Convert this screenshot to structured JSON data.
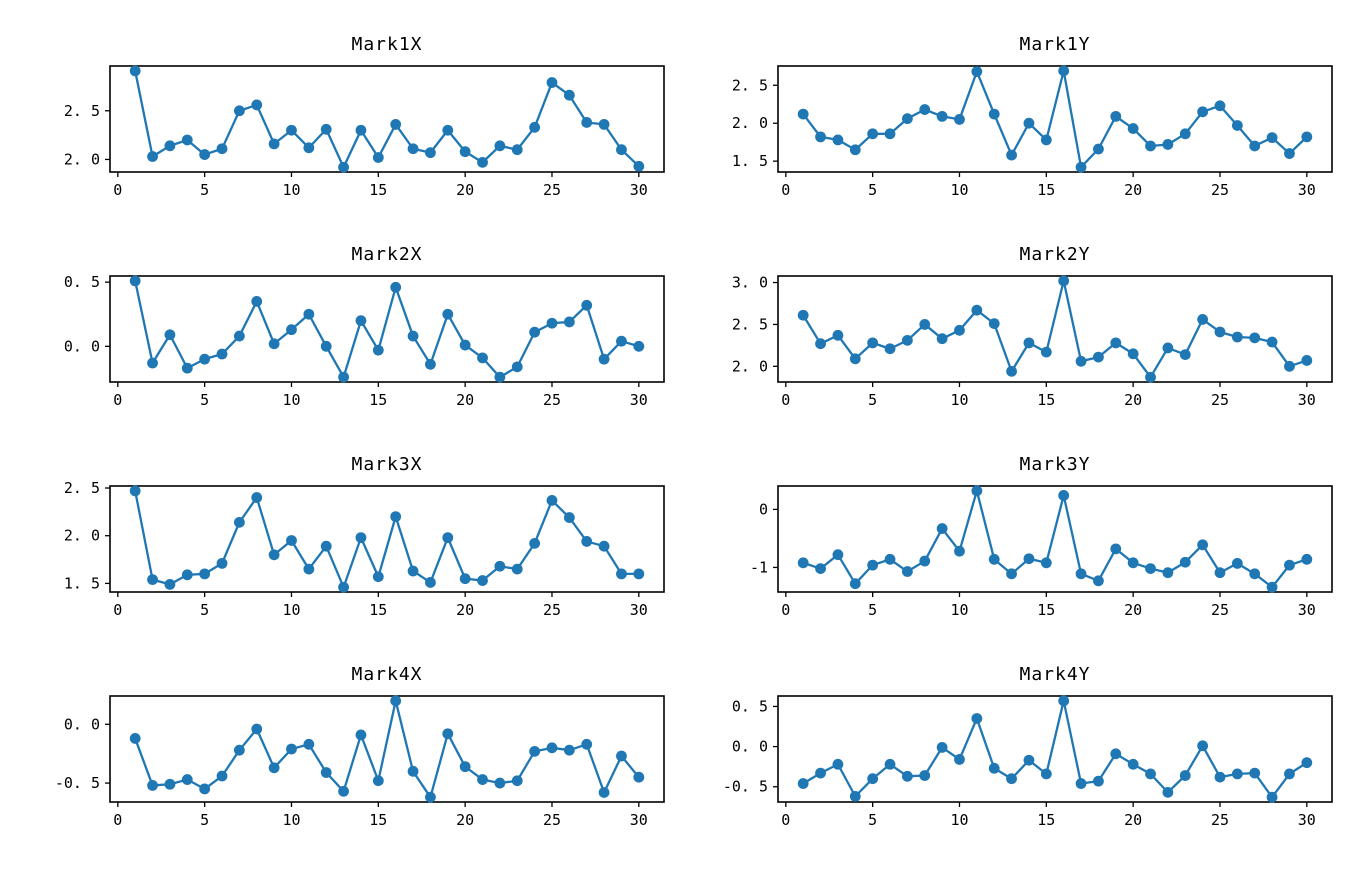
{
  "figure": {
    "background": "#ffffff",
    "accent_color": "#1f77b4",
    "axis_color": "#000000",
    "num_rows": 4,
    "num_cols": 2
  },
  "chart_data": [
    {
      "type": "line",
      "title": "Mark1X",
      "marker": "circle",
      "color": "#1f77b4",
      "grid": false,
      "legend_position": "none",
      "x": [
        1,
        2,
        3,
        4,
        5,
        6,
        7,
        8,
        9,
        10,
        11,
        12,
        13,
        14,
        15,
        16,
        17,
        18,
        19,
        20,
        21,
        22,
        23,
        24,
        25,
        26,
        27,
        28,
        29,
        30
      ],
      "y": [
        2.91,
        2.03,
        2.14,
        2.2,
        2.05,
        2.11,
        2.5,
        2.56,
        2.16,
        2.3,
        2.12,
        2.31,
        1.92,
        2.3,
        2.02,
        2.36,
        2.11,
        2.07,
        2.3,
        2.08,
        1.97,
        2.14,
        2.1,
        2.33,
        2.79,
        2.66,
        2.38,
        2.36,
        2.1,
        1.93
      ],
      "xlim": [
        -0.45,
        31.45
      ],
      "ylim": [
        1.871,
        2.96
      ],
      "xticks": {
        "values": [
          0,
          5,
          10,
          15,
          20,
          25,
          30
        ],
        "labels": [
          "0",
          "5",
          "10",
          "15",
          "20",
          "25",
          "30"
        ]
      },
      "yticks": {
        "values": [
          2.0,
          2.5
        ],
        "labels": [
          "2. 0",
          "2. 5"
        ]
      }
    },
    {
      "type": "line",
      "title": "Mark1Y",
      "marker": "circle",
      "color": "#1f77b4",
      "grid": false,
      "legend_position": "none",
      "x": [
        1,
        2,
        3,
        4,
        5,
        6,
        7,
        8,
        9,
        10,
        11,
        12,
        13,
        14,
        15,
        16,
        17,
        18,
        19,
        20,
        21,
        22,
        23,
        24,
        25,
        26,
        27,
        28,
        29,
        30
      ],
      "y": [
        2.12,
        1.82,
        1.78,
        1.65,
        1.86,
        1.86,
        2.06,
        2.18,
        2.09,
        2.05,
        2.68,
        2.12,
        1.58,
        2.0,
        1.78,
        2.69,
        1.42,
        1.66,
        2.09,
        1.93,
        1.7,
        1.72,
        1.86,
        2.15,
        2.23,
        1.97,
        1.7,
        1.81,
        1.6,
        1.82
      ],
      "xlim": [
        -0.45,
        31.45
      ],
      "ylim": [
        1.357,
        2.754
      ],
      "xticks": {
        "values": [
          0,
          5,
          10,
          15,
          20,
          25,
          30
        ],
        "labels": [
          "0",
          "5",
          "10",
          "15",
          "20",
          "25",
          "30"
        ]
      },
      "yticks": {
        "values": [
          1.5,
          2.0,
          2.5
        ],
        "labels": [
          "1. 5",
          "2. 0",
          "2. 5"
        ]
      }
    },
    {
      "type": "line",
      "title": "Mark2X",
      "marker": "circle",
      "color": "#1f77b4",
      "grid": false,
      "legend_position": "none",
      "x": [
        1,
        2,
        3,
        4,
        5,
        6,
        7,
        8,
        9,
        10,
        11,
        12,
        13,
        14,
        15,
        16,
        17,
        18,
        19,
        20,
        21,
        22,
        23,
        24,
        25,
        26,
        27,
        28,
        29,
        30
      ],
      "y": [
        0.51,
        -0.13,
        0.09,
        -0.17,
        -0.1,
        -0.06,
        0.08,
        0.35,
        0.02,
        0.13,
        0.25,
        0.0,
        -0.24,
        0.2,
        -0.03,
        0.46,
        0.08,
        -0.14,
        0.25,
        0.01,
        -0.09,
        -0.24,
        -0.16,
        0.11,
        0.18,
        0.19,
        0.32,
        -0.1,
        0.04,
        0.0
      ],
      "xlim": [
        -0.45,
        31.45
      ],
      "ylim": [
        -0.278,
        0.548
      ],
      "xticks": {
        "values": [
          0,
          5,
          10,
          15,
          20,
          25,
          30
        ],
        "labels": [
          "0",
          "5",
          "10",
          "15",
          "20",
          "25",
          "30"
        ]
      },
      "yticks": {
        "values": [
          0.0,
          0.5
        ],
        "labels": [
          "0. 0",
          "0. 5"
        ]
      }
    },
    {
      "type": "line",
      "title": "Mark2Y",
      "marker": "circle",
      "color": "#1f77b4",
      "grid": false,
      "legend_position": "none",
      "x": [
        1,
        2,
        3,
        4,
        5,
        6,
        7,
        8,
        9,
        10,
        11,
        12,
        13,
        14,
        15,
        16,
        17,
        18,
        19,
        20,
        21,
        22,
        23,
        24,
        25,
        26,
        27,
        28,
        29,
        30
      ],
      "y": [
        2.61,
        2.27,
        2.37,
        2.09,
        2.28,
        2.21,
        2.31,
        2.5,
        2.33,
        2.43,
        2.67,
        2.51,
        1.94,
        2.28,
        2.17,
        3.02,
        2.06,
        2.11,
        2.28,
        2.15,
        1.87,
        2.22,
        2.14,
        2.56,
        2.41,
        2.35,
        2.34,
        2.29,
        2.0,
        2.07
      ],
      "xlim": [
        -0.45,
        31.45
      ],
      "ylim": [
        1.813,
        3.078
      ],
      "xticks": {
        "values": [
          0,
          5,
          10,
          15,
          20,
          25,
          30
        ],
        "labels": [
          "0",
          "5",
          "10",
          "15",
          "20",
          "25",
          "30"
        ]
      },
      "yticks": {
        "values": [
          2.0,
          2.5,
          3.0
        ],
        "labels": [
          "2. 0",
          "2. 5",
          "3. 0"
        ]
      }
    },
    {
      "type": "line",
      "title": "Mark3X",
      "marker": "circle",
      "color": "#1f77b4",
      "grid": false,
      "legend_position": "none",
      "x": [
        1,
        2,
        3,
        4,
        5,
        6,
        7,
        8,
        9,
        10,
        11,
        12,
        13,
        14,
        15,
        16,
        17,
        18,
        19,
        20,
        21,
        22,
        23,
        24,
        25,
        26,
        27,
        28,
        29,
        30
      ],
      "y": [
        2.47,
        1.54,
        1.49,
        1.59,
        1.6,
        1.71,
        2.14,
        2.4,
        1.8,
        1.95,
        1.65,
        1.89,
        1.46,
        1.98,
        1.57,
        2.2,
        1.63,
        1.51,
        1.98,
        1.55,
        1.53,
        1.68,
        1.65,
        1.92,
        2.37,
        2.19,
        1.94,
        1.89,
        1.6,
        1.6
      ],
      "xlim": [
        -0.45,
        31.45
      ],
      "ylim": [
        1.41,
        2.521
      ],
      "xticks": {
        "values": [
          0,
          5,
          10,
          15,
          20,
          25,
          30
        ],
        "labels": [
          "0",
          "5",
          "10",
          "15",
          "20",
          "25",
          "30"
        ]
      },
      "yticks": {
        "values": [
          1.5,
          2.0,
          2.5
        ],
        "labels": [
          "1. 5",
          "2. 0",
          "2. 5"
        ]
      }
    },
    {
      "type": "line",
      "title": "Mark3Y",
      "marker": "circle",
      "color": "#1f77b4",
      "grid": false,
      "legend_position": "none",
      "x": [
        1,
        2,
        3,
        4,
        5,
        6,
        7,
        8,
        9,
        10,
        11,
        12,
        13,
        14,
        15,
        16,
        17,
        18,
        19,
        20,
        21,
        22,
        23,
        24,
        25,
        26,
        27,
        28,
        29,
        30
      ],
      "y": [
        -0.92,
        -1.02,
        -0.78,
        -1.28,
        -0.96,
        -0.86,
        -1.07,
        -0.89,
        -0.33,
        -0.72,
        0.32,
        -0.86,
        -1.11,
        -0.85,
        -0.92,
        0.24,
        -1.11,
        -1.23,
        -0.68,
        -0.92,
        -1.02,
        -1.09,
        -0.91,
        -0.61,
        -1.09,
        -0.93,
        -1.11,
        -1.34,
        -0.96,
        -0.86
      ],
      "xlim": [
        -0.45,
        31.45
      ],
      "ylim": [
        -1.423,
        0.403
      ],
      "xticks": {
        "values": [
          0,
          5,
          10,
          15,
          20,
          25,
          30
        ],
        "labels": [
          "0",
          "5",
          "10",
          "15",
          "20",
          "25",
          "30"
        ]
      },
      "yticks": {
        "values": [
          -1,
          0
        ],
        "labels": [
          "-1",
          "0"
        ]
      }
    },
    {
      "type": "line",
      "title": "Mark4X",
      "marker": "circle",
      "color": "#1f77b4",
      "grid": false,
      "legend_position": "none",
      "x": [
        1,
        2,
        3,
        4,
        5,
        6,
        7,
        8,
        9,
        10,
        11,
        12,
        13,
        14,
        15,
        16,
        17,
        18,
        19,
        20,
        21,
        22,
        23,
        24,
        25,
        26,
        27,
        28,
        29,
        30
      ],
      "y": [
        -0.12,
        -0.52,
        -0.51,
        -0.47,
        -0.55,
        -0.44,
        -0.22,
        -0.04,
        -0.37,
        -0.21,
        -0.17,
        -0.41,
        -0.57,
        -0.09,
        -0.48,
        0.2,
        -0.4,
        -0.62,
        -0.08,
        -0.36,
        -0.47,
        -0.5,
        -0.48,
        -0.23,
        -0.2,
        -0.22,
        -0.17,
        -0.58,
        -0.27,
        -0.45
      ],
      "xlim": [
        -0.45,
        31.45
      ],
      "ylim": [
        -0.661,
        0.241
      ],
      "xticks": {
        "values": [
          0,
          5,
          10,
          15,
          20,
          25,
          30
        ],
        "labels": [
          "0",
          "5",
          "10",
          "15",
          "20",
          "25",
          "30"
        ]
      },
      "yticks": {
        "values": [
          -0.5,
          0.0
        ],
        "labels": [
          "-0. 5",
          "0. 0"
        ]
      }
    },
    {
      "type": "line",
      "title": "Mark4Y",
      "marker": "circle",
      "color": "#1f77b4",
      "grid": false,
      "legend_position": "none",
      "x": [
        1,
        2,
        3,
        4,
        5,
        6,
        7,
        8,
        9,
        10,
        11,
        12,
        13,
        14,
        15,
        16,
        17,
        18,
        19,
        20,
        21,
        22,
        23,
        24,
        25,
        26,
        27,
        28,
        29,
        30
      ],
      "y": [
        -0.46,
        -0.33,
        -0.22,
        -0.62,
        -0.4,
        -0.22,
        -0.37,
        -0.36,
        -0.01,
        -0.16,
        0.35,
        -0.27,
        -0.4,
        -0.17,
        -0.34,
        0.57,
        -0.46,
        -0.43,
        -0.09,
        -0.22,
        -0.34,
        -0.57,
        -0.36,
        0.01,
        -0.38,
        -0.34,
        -0.33,
        -0.63,
        -0.34,
        -0.2
      ],
      "xlim": [
        -0.45,
        31.45
      ],
      "ylim": [
        -0.69,
        0.63
      ],
      "xticks": {
        "values": [
          0,
          5,
          10,
          15,
          20,
          25,
          30
        ],
        "labels": [
          "0",
          "5",
          "10",
          "15",
          "20",
          "25",
          "30"
        ]
      },
      "yticks": {
        "values": [
          -0.5,
          0.0,
          0.5
        ],
        "labels": [
          "-0. 5",
          "0. 0",
          "0. 5"
        ]
      }
    }
  ]
}
